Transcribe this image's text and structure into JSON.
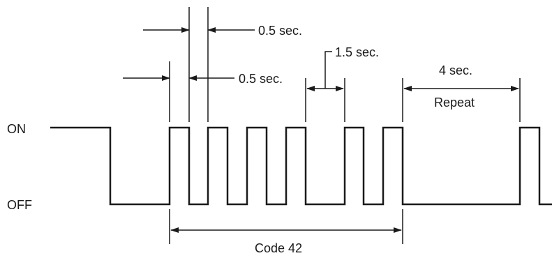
{
  "diagram": {
    "levels": {
      "on": "ON",
      "off": "OFF"
    },
    "dimensions": {
      "pulse_width": "0.5 sec.",
      "pulse_gap": "0.5 sec.",
      "digit_gap": "1.5 sec.",
      "repeat_gap": "4 sec.",
      "repeat_label": "Repeat",
      "code": "Code 42"
    }
  }
}
